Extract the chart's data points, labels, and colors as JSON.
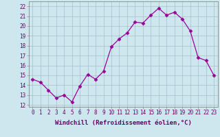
{
  "x": [
    0,
    1,
    2,
    3,
    4,
    5,
    6,
    7,
    8,
    9,
    10,
    11,
    12,
    13,
    14,
    15,
    16,
    17,
    18,
    19,
    20,
    21,
    22,
    23
  ],
  "y": [
    14.6,
    14.3,
    13.5,
    12.7,
    13.0,
    12.3,
    13.9,
    15.1,
    14.6,
    15.4,
    17.9,
    18.7,
    19.3,
    20.4,
    20.3,
    21.1,
    21.8,
    21.1,
    21.4,
    20.7,
    19.5,
    16.8,
    16.5,
    15.0
  ],
  "line_color": "#990099",
  "marker": "D",
  "marker_size": 2.5,
  "bg_color": "#cce8ee",
  "grid_color": "#aabbcc",
  "xlabel": "Windchill (Refroidissement éolien,°C)",
  "ylabel_ticks": [
    12,
    13,
    14,
    15,
    16,
    17,
    18,
    19,
    20,
    21,
    22
  ],
  "ylim": [
    11.8,
    22.5
  ],
  "xlim": [
    -0.5,
    23.5
  ],
  "xticks": [
    0,
    1,
    2,
    3,
    4,
    5,
    6,
    7,
    8,
    9,
    10,
    11,
    12,
    13,
    14,
    15,
    16,
    17,
    18,
    19,
    20,
    21,
    22,
    23
  ],
  "tick_fontsize": 5.5,
  "xlabel_fontsize": 6.5,
  "label_color": "#660066"
}
